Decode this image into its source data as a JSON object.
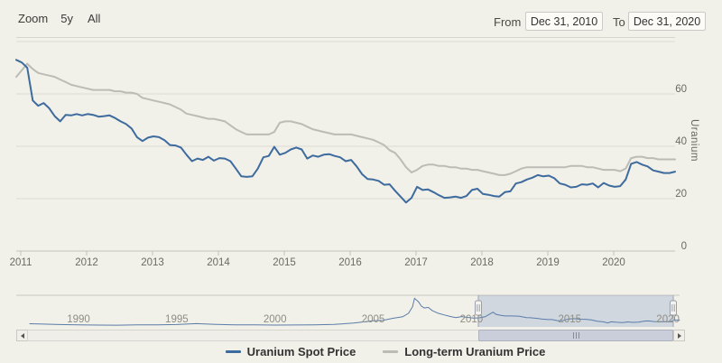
{
  "header": {
    "zoom_label": "Zoom",
    "zoom_options": [
      "5y",
      "All"
    ],
    "from_label": "From",
    "from_value": "Dec 31, 2010",
    "to_label": "To",
    "to_value": "Dec 31, 2020"
  },
  "colors": {
    "background": "#f1f0e9",
    "gridline": "#dbdad4",
    "axis_line": "#c3c2bc",
    "tick_label": "#6b6a64",
    "nav_label": "#8f8e85",
    "nav_line": "#5b7ca8",
    "nav_mask": "rgba(91,126,180,0.22)",
    "spot_blue": "#3e6b9e",
    "longterm_gray": "#bcbbb5"
  },
  "chart_data": [
    {
      "type": "line",
      "title": "",
      "ylabel": "Uranium",
      "ylim": [
        0,
        80
      ],
      "yticks_labeled": [
        0,
        20,
        40,
        60
      ],
      "gridlines": [
        20,
        40,
        60,
        80
      ],
      "grid": true,
      "legend_position": "bottom",
      "interval": "monthly",
      "x_range": [
        "Dec 31, 2010",
        "Dec 31, 2020"
      ],
      "x_year_ticks": [
        "2011",
        "2012",
        "2013",
        "2014",
        "2015",
        "2016",
        "2017",
        "2018",
        "2019",
        "2020"
      ],
      "series": [
        {
          "name": "Uranium Spot Price",
          "color": "#3e6b9e",
          "values": [
            73.0,
            72.0,
            70.0,
            57.5,
            55.5,
            56.5,
            54.5,
            51.5,
            49.5,
            52.0,
            51.8,
            52.3,
            51.8,
            52.3,
            52.0,
            51.3,
            51.5,
            51.8,
            50.8,
            49.5,
            48.5,
            46.8,
            43.5,
            42.0,
            43.3,
            43.8,
            43.5,
            42.3,
            40.5,
            40.3,
            39.5,
            36.8,
            34.3,
            35.3,
            34.8,
            36.0,
            34.5,
            35.5,
            35.3,
            34.3,
            31.5,
            28.5,
            28.3,
            28.5,
            31.5,
            35.8,
            36.3,
            39.8,
            36.8,
            37.5,
            38.8,
            39.5,
            38.8,
            35.3,
            36.5,
            36.0,
            36.8,
            37.0,
            36.3,
            35.8,
            34.3,
            34.8,
            32.3,
            29.3,
            27.5,
            27.3,
            26.8,
            25.3,
            25.5,
            23.0,
            20.8,
            18.5,
            20.3,
            24.5,
            23.3,
            23.5,
            22.5,
            21.3,
            20.3,
            20.5,
            20.8,
            20.3,
            21.0,
            23.3,
            23.8,
            21.8,
            21.5,
            21.0,
            20.8,
            22.5,
            22.8,
            25.8,
            26.3,
            27.3,
            28.0,
            29.0,
            28.5,
            28.8,
            27.8,
            25.8,
            25.3,
            24.3,
            24.5,
            25.5,
            25.3,
            25.8,
            24.3,
            26.0,
            25.0,
            24.5,
            24.8,
            27.3,
            33.3,
            34.0,
            33.0,
            32.3,
            30.8,
            30.3,
            29.8,
            29.8,
            30.3
          ]
        },
        {
          "name": "Long-term Uranium Price",
          "color": "#bcbbb5",
          "values": [
            66.5,
            69.0,
            71.5,
            69.5,
            68.0,
            67.5,
            67.0,
            66.5,
            65.5,
            64.5,
            63.5,
            63.0,
            62.5,
            62.0,
            61.5,
            61.5,
            61.5,
            61.5,
            61.0,
            61.0,
            60.5,
            60.5,
            60.0,
            58.5,
            58.0,
            57.5,
            57.0,
            56.5,
            56.0,
            55.0,
            54.0,
            52.5,
            52.0,
            51.5,
            51.0,
            50.5,
            50.5,
            50.0,
            49.5,
            48.0,
            46.5,
            45.5,
            44.5,
            44.5,
            44.5,
            44.5,
            44.5,
            45.5,
            49.0,
            49.5,
            49.5,
            49.0,
            48.5,
            47.5,
            46.5,
            46.0,
            45.5,
            45.0,
            44.5,
            44.5,
            44.5,
            44.5,
            44.0,
            43.5,
            43.0,
            42.5,
            41.5,
            40.5,
            38.5,
            37.5,
            35.0,
            32.0,
            30.0,
            31.0,
            32.5,
            33.0,
            33.0,
            32.5,
            32.5,
            32.0,
            32.0,
            31.5,
            31.5,
            31.0,
            31.0,
            30.5,
            30.0,
            29.5,
            29.0,
            29.0,
            29.5,
            30.5,
            31.5,
            32.0,
            32.0,
            32.0,
            32.0,
            32.0,
            32.0,
            32.0,
            32.0,
            32.5,
            32.5,
            32.5,
            32.0,
            32.0,
            31.5,
            31.0,
            31.0,
            31.0,
            30.5,
            31.5,
            35.5,
            36.0,
            36.0,
            35.5,
            35.5,
            35.0,
            35.0,
            35.0,
            35.0
          ]
        }
      ]
    },
    {
      "type": "area",
      "name": "navigator-minimap",
      "color": "#5b7ca8",
      "xlim": [
        1987,
        2021
      ],
      "xticks": [
        1990,
        1995,
        2000,
        2005,
        2010,
        2015,
        2020
      ],
      "selected_range": [
        "Dec 31, 2010",
        "Dec 31, 2020"
      ],
      "points": [
        [
          1987.5,
          15
        ],
        [
          1988,
          14
        ],
        [
          1989,
          11
        ],
        [
          1990,
          9.5
        ],
        [
          1991,
          8.5
        ],
        [
          1992,
          8
        ],
        [
          1993,
          10
        ],
        [
          1994,
          9.5
        ],
        [
          1995,
          11
        ],
        [
          1996,
          15.5
        ],
        [
          1997,
          12
        ],
        [
          1998,
          9.5
        ],
        [
          1999,
          10
        ],
        [
          2000,
          8.5
        ],
        [
          2001,
          9
        ],
        [
          2002,
          10
        ],
        [
          2003,
          11.5
        ],
        [
          2004,
          18
        ],
        [
          2005,
          29
        ],
        [
          2005.5,
          31
        ],
        [
          2006,
          41
        ],
        [
          2006.5,
          48
        ],
        [
          2006.8,
          65
        ],
        [
          2007.0,
          96
        ],
        [
          2007.1,
          136
        ],
        [
          2007.3,
          120
        ],
        [
          2007.45,
          99
        ],
        [
          2007.6,
          90
        ],
        [
          2007.8,
          93
        ],
        [
          2008,
          78
        ],
        [
          2008.3,
          65
        ],
        [
          2008.6,
          57
        ],
        [
          2008.9,
          50
        ],
        [
          2009.2,
          44
        ],
        [
          2009.5,
          49
        ],
        [
          2009.8,
          45
        ],
        [
          2010.1,
          42
        ],
        [
          2010.4,
          43
        ],
        [
          2010.7,
          48
        ],
        [
          2010.95,
          62
        ],
        [
          2011.1,
          70
        ],
        [
          2011.25,
          60
        ],
        [
          2011.5,
          55
        ],
        [
          2011.7,
          52
        ],
        [
          2012,
          52
        ],
        [
          2012.4,
          51
        ],
        [
          2012.8,
          44
        ],
        [
          2013,
          43.5
        ],
        [
          2013.3,
          41
        ],
        [
          2013.6,
          37
        ],
        [
          2013.9,
          35
        ],
        [
          2014.1,
          35
        ],
        [
          2014.4,
          29
        ],
        [
          2014.7,
          31
        ],
        [
          2014.95,
          38
        ],
        [
          2015.2,
          39
        ],
        [
          2015.5,
          36.5
        ],
        [
          2015.8,
          36
        ],
        [
          2016.1,
          33
        ],
        [
          2016.4,
          27
        ],
        [
          2016.7,
          24
        ],
        [
          2016.95,
          19
        ],
        [
          2017.1,
          24
        ],
        [
          2017.4,
          22
        ],
        [
          2017.7,
          20.5
        ],
        [
          2017.95,
          23.5
        ],
        [
          2018.2,
          21.5
        ],
        [
          2018.5,
          23
        ],
        [
          2018.8,
          27.5
        ],
        [
          2019,
          28.5
        ],
        [
          2019.3,
          25.5
        ],
        [
          2019.6,
          25
        ],
        [
          2019.9,
          25
        ],
        [
          2020.1,
          24.5
        ],
        [
          2020.35,
          33.5
        ],
        [
          2020.6,
          31.5
        ],
        [
          2020.85,
          30
        ],
        [
          2020.95,
          30.5
        ]
      ]
    }
  ],
  "legend": {
    "items": [
      {
        "label": "Uranium Spot Price"
      },
      {
        "label": "Long-term Uranium Price"
      }
    ]
  }
}
